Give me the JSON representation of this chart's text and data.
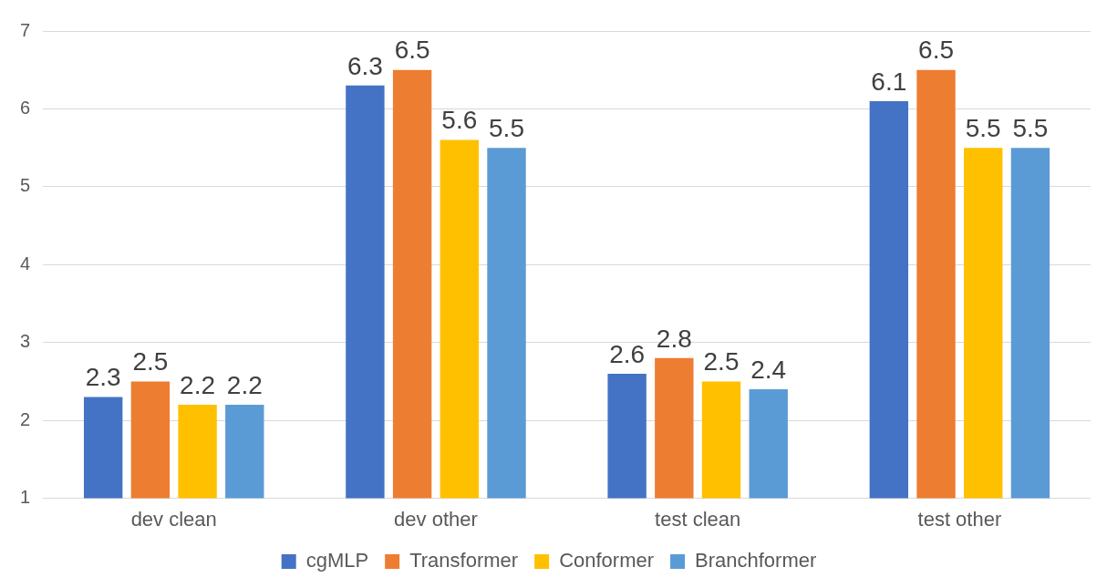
{
  "chart_data": {
    "type": "bar",
    "categories": [
      "dev clean",
      "dev other",
      "test clean",
      "test other"
    ],
    "series": [
      {
        "name": "cgMLP",
        "color": "#4472c4",
        "values": [
          2.3,
          6.3,
          2.6,
          6.1
        ]
      },
      {
        "name": "Transformer",
        "color": "#ed7d31",
        "values": [
          2.5,
          6.5,
          2.8,
          6.5
        ]
      },
      {
        "name": "Conformer",
        "color": "#ffc000",
        "values": [
          2.2,
          5.6,
          2.5,
          5.5
        ]
      },
      {
        "name": "Branchformer",
        "color": "#5b9bd5",
        "values": [
          2.2,
          5.5,
          2.4,
          5.5
        ]
      }
    ],
    "ylim": [
      1,
      7
    ],
    "yticks": [
      1,
      2,
      3,
      4,
      5,
      6,
      7
    ],
    "grid": "y",
    "legend": "bottom",
    "data_labels": true
  }
}
